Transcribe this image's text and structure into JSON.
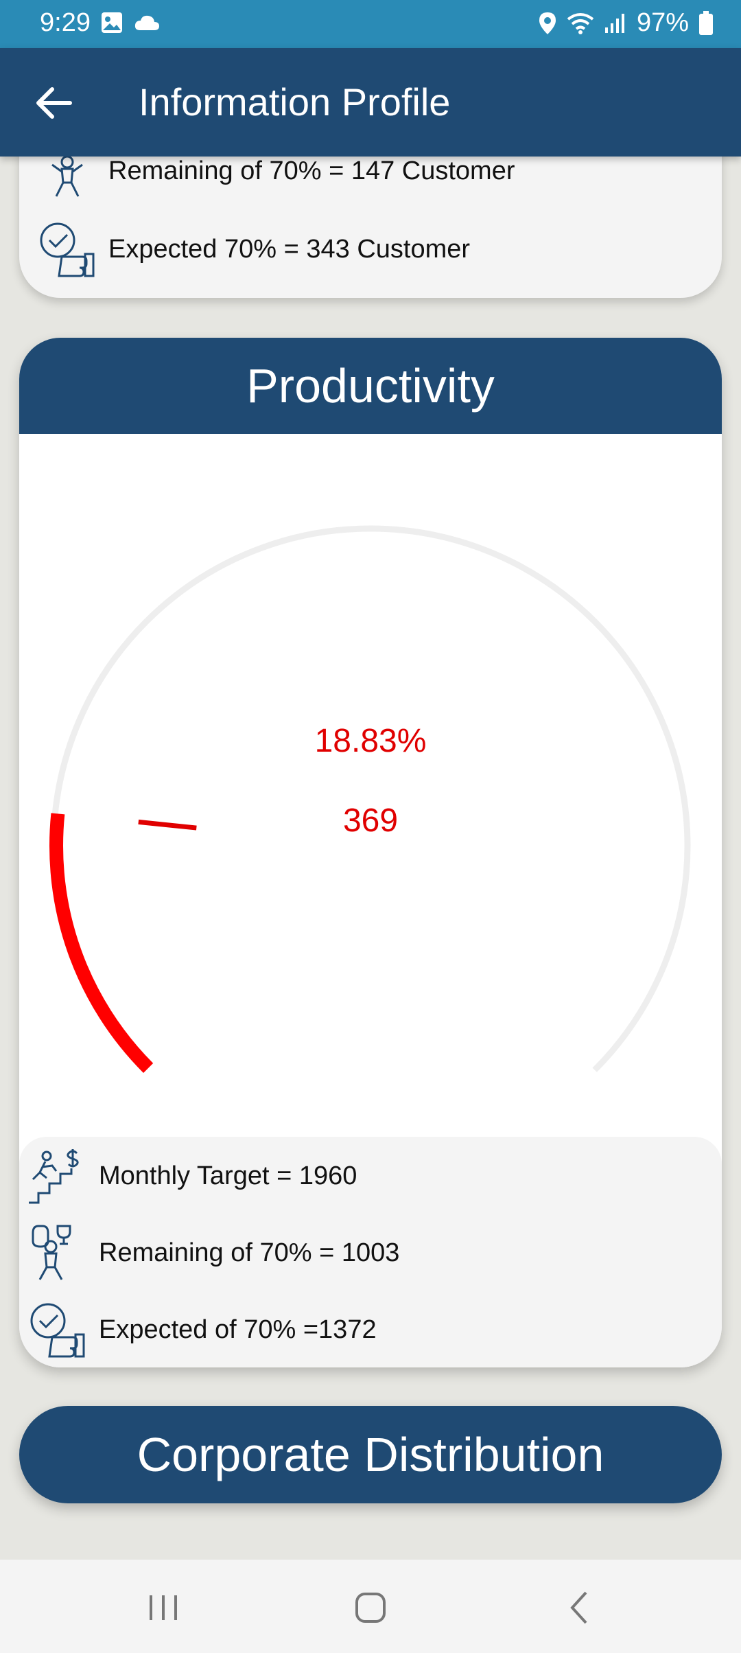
{
  "status_bar": {
    "time": "9:29",
    "battery": "97%",
    "icons": [
      "gallery-icon",
      "cloud-icon",
      "location-icon",
      "wifi-icon",
      "signal-icon",
      "battery-icon"
    ]
  },
  "app_bar": {
    "title": "Information Profile",
    "back_icon": "arrow-left-icon"
  },
  "top_card": {
    "rows": [
      {
        "icon": "money-trophy-icon",
        "text": "Remaining of 70% = 147 Customer"
      },
      {
        "icon": "thumbs-up-check-icon",
        "text": "Expected 70% = 343 Customer"
      }
    ]
  },
  "productivity": {
    "title": "Productivity",
    "gauge": {
      "percent_label": "18.83%",
      "value_label": "369",
      "fraction": 0.1883,
      "track_color": "#eeeeee",
      "progress_color": "#ff0000"
    },
    "stats": [
      {
        "icon": "stairs-goal-icon",
        "text": "Monthly Target = 1960"
      },
      {
        "icon": "money-trophy-icon",
        "text": "Remaining of 70% = 1003"
      },
      {
        "icon": "thumbs-up-check-icon",
        "text": "Expected of 70% =1372"
      }
    ]
  },
  "corporate": {
    "label": "Corporate Distribution"
  },
  "nav_bar": {
    "icons": [
      "recent-apps-icon",
      "home-icon",
      "back-icon"
    ]
  },
  "colors": {
    "primary": "#1f4a73",
    "status_bar": "#2a8bb6",
    "accent_red": "#e00000"
  }
}
